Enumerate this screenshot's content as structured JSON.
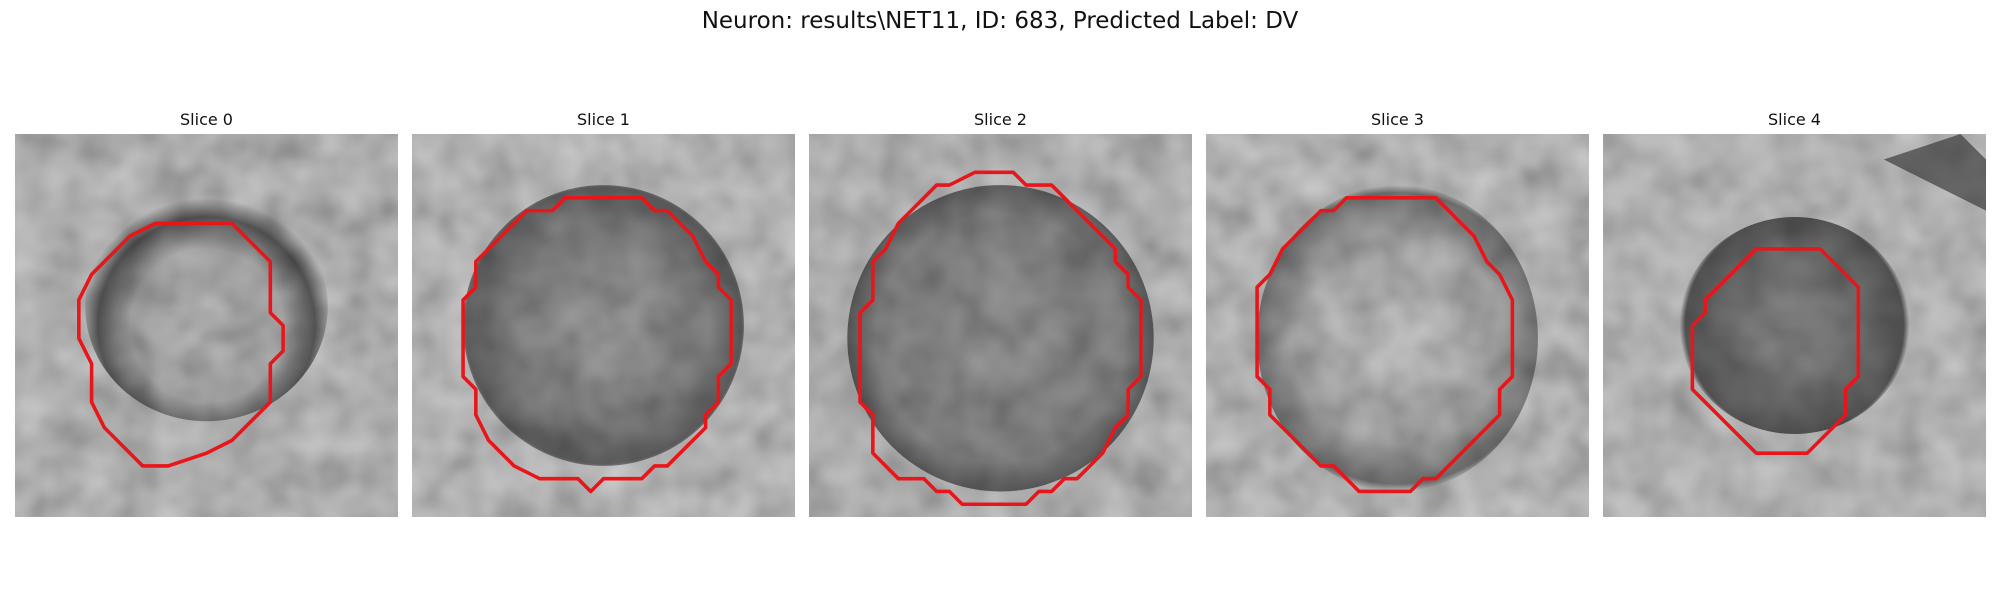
{
  "title": "Neuron: results\\NET11, ID: 683, Predicted Label: DV",
  "outline_color": "#e8161b",
  "slices": [
    {
      "label": "Slice 0"
    },
    {
      "label": "Slice 1"
    },
    {
      "label": "Slice 2"
    },
    {
      "label": "Slice 3"
    },
    {
      "label": "Slice 4"
    }
  ]
}
